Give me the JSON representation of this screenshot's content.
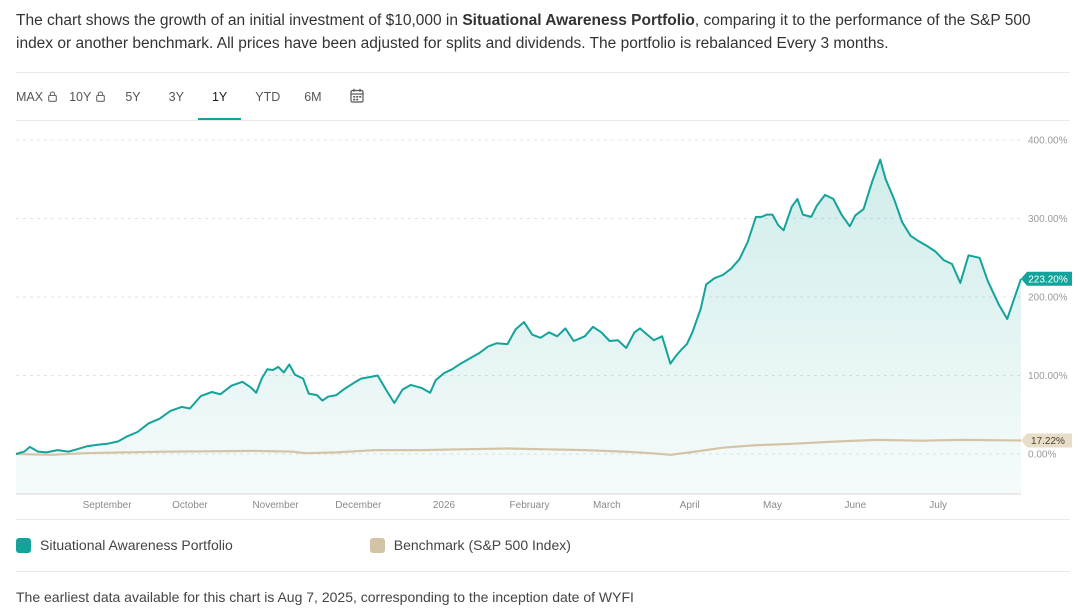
{
  "description": {
    "prefix": "The chart shows the growth of an initial investment of $10,000 in ",
    "portfolio_name": "Situational Awareness Portfolio",
    "suffix": ", comparing it to the performance of the S&P 500 index or another benchmark. All prices have been adjusted for splits and dividends. The portfolio is rebalanced Every 3 months."
  },
  "tabs": [
    {
      "label": "MAX",
      "locked": true,
      "active": false
    },
    {
      "label": "10Y",
      "locked": true,
      "active": false
    },
    {
      "label": "5Y",
      "locked": false,
      "active": false
    },
    {
      "label": "3Y",
      "locked": false,
      "active": false
    },
    {
      "label": "1Y",
      "locked": false,
      "active": true
    },
    {
      "label": "YTD",
      "locked": false,
      "active": false
    },
    {
      "label": "6M",
      "locked": false,
      "active": false
    }
  ],
  "icons": {
    "lock": "lock-icon",
    "calendar": "calendar-icon"
  },
  "colors": {
    "portfolio": "#14a39a",
    "benchmark": "#d3c4a7",
    "active_tab": "#14a39a"
  },
  "chart_data": {
    "type": "area",
    "title": "",
    "xlabel": "",
    "ylabel": "",
    "y_unit": "%",
    "ylim": [
      -50,
      400
    ],
    "yticks": [
      {
        "value": 400,
        "label": "400.00%"
      },
      {
        "value": 300,
        "label": "300.00%"
      },
      {
        "value": 200,
        "label": "200.00%"
      },
      {
        "value": 100,
        "label": "100.00%"
      },
      {
        "value": 0,
        "label": "0.00%"
      }
    ],
    "xlim": [
      "2025-08-07",
      "2026-08-06"
    ],
    "xticks": [
      {
        "date": "2025-09-09",
        "label": "September"
      },
      {
        "date": "2025-10-09",
        "label": "October"
      },
      {
        "date": "2025-11-09",
        "label": "November"
      },
      {
        "date": "2025-12-09",
        "label": "December"
      },
      {
        "date": "2026-01-09",
        "label": "2026"
      },
      {
        "date": "2026-02-09",
        "label": "February"
      },
      {
        "date": "2026-03-09",
        "label": "March"
      },
      {
        "date": "2026-04-08",
        "label": "April"
      },
      {
        "date": "2026-05-08",
        "label": "May"
      },
      {
        "date": "2026-06-07",
        "label": "June"
      },
      {
        "date": "2026-07-07",
        "label": "July"
      }
    ],
    "grid": true,
    "legend_position": "bottom",
    "series": [
      {
        "name": "Situational Awareness Portfolio",
        "end_label": "223.20%",
        "points": [
          [
            "2025-08-07",
            0
          ],
          [
            "2025-08-10",
            3
          ],
          [
            "2025-08-12",
            9
          ],
          [
            "2025-08-15",
            3
          ],
          [
            "2025-08-18",
            2
          ],
          [
            "2025-08-22",
            5
          ],
          [
            "2025-08-26",
            3
          ],
          [
            "2025-08-29",
            6
          ],
          [
            "2025-09-02",
            10
          ],
          [
            "2025-09-06",
            12
          ],
          [
            "2025-09-09",
            13
          ],
          [
            "2025-09-13",
            16
          ],
          [
            "2025-09-16",
            22
          ],
          [
            "2025-09-20",
            28
          ],
          [
            "2025-09-24",
            39
          ],
          [
            "2025-09-28",
            45
          ],
          [
            "2025-10-02",
            55
          ],
          [
            "2025-10-06",
            60
          ],
          [
            "2025-10-09",
            58
          ],
          [
            "2025-10-13",
            74
          ],
          [
            "2025-10-17",
            79
          ],
          [
            "2025-10-20",
            76
          ],
          [
            "2025-10-24",
            87
          ],
          [
            "2025-10-28",
            92
          ],
          [
            "2025-10-31",
            85
          ],
          [
            "2025-11-02",
            78
          ],
          [
            "2025-11-04",
            96
          ],
          [
            "2025-11-06",
            108
          ],
          [
            "2025-11-08",
            107
          ],
          [
            "2025-11-10",
            111
          ],
          [
            "2025-11-12",
            104
          ],
          [
            "2025-11-14",
            114
          ],
          [
            "2025-11-16",
            101
          ],
          [
            "2025-11-19",
            96
          ],
          [
            "2025-11-21",
            77
          ],
          [
            "2025-11-24",
            75
          ],
          [
            "2025-11-26",
            68
          ],
          [
            "2025-11-28",
            73
          ],
          [
            "2025-12-01",
            75
          ],
          [
            "2025-12-04",
            83
          ],
          [
            "2025-12-08",
            92
          ],
          [
            "2025-12-10",
            96
          ],
          [
            "2025-12-13",
            98
          ],
          [
            "2025-12-16",
            100
          ],
          [
            "2025-12-19",
            82
          ],
          [
            "2025-12-22",
            65
          ],
          [
            "2025-12-25",
            82
          ],
          [
            "2025-12-28",
            88
          ],
          [
            "2026-01-01",
            84
          ],
          [
            "2026-01-04",
            78
          ],
          [
            "2026-01-06",
            94
          ],
          [
            "2026-01-09",
            103
          ],
          [
            "2026-01-12",
            108
          ],
          [
            "2026-01-15",
            115
          ],
          [
            "2026-01-19",
            123
          ],
          [
            "2026-01-22",
            129
          ],
          [
            "2026-01-25",
            137
          ],
          [
            "2026-01-28",
            141
          ],
          [
            "2026-02-01",
            140
          ],
          [
            "2026-02-04",
            159
          ],
          [
            "2026-02-07",
            168
          ],
          [
            "2026-02-10",
            152
          ],
          [
            "2026-02-13",
            148
          ],
          [
            "2026-02-16",
            155
          ],
          [
            "2026-02-19",
            150
          ],
          [
            "2026-02-22",
            160
          ],
          [
            "2026-02-25",
            144
          ],
          [
            "2026-03-01",
            150
          ],
          [
            "2026-03-04",
            162
          ],
          [
            "2026-03-07",
            155
          ],
          [
            "2026-03-10",
            144
          ],
          [
            "2026-03-13",
            145
          ],
          [
            "2026-03-16",
            135
          ],
          [
            "2026-03-19",
            155
          ],
          [
            "2026-03-21",
            160
          ],
          [
            "2026-03-23",
            154
          ],
          [
            "2026-03-26",
            145
          ],
          [
            "2026-03-29",
            150
          ],
          [
            "2026-04-01",
            115
          ],
          [
            "2026-04-03",
            125
          ],
          [
            "2026-04-05",
            133
          ],
          [
            "2026-04-07",
            140
          ],
          [
            "2026-04-09",
            155
          ],
          [
            "2026-04-12",
            185
          ],
          [
            "2026-04-14",
            216
          ],
          [
            "2026-04-17",
            224
          ],
          [
            "2026-04-20",
            228
          ],
          [
            "2026-04-23",
            236
          ],
          [
            "2026-04-26",
            248
          ],
          [
            "2026-04-29",
            270
          ],
          [
            "2026-05-02",
            302
          ],
          [
            "2026-05-04",
            302
          ],
          [
            "2026-05-06",
            305
          ],
          [
            "2026-05-08",
            305
          ],
          [
            "2026-05-10",
            292
          ],
          [
            "2026-05-12",
            285
          ],
          [
            "2026-05-15",
            315
          ],
          [
            "2026-05-17",
            325
          ],
          [
            "2026-05-19",
            305
          ],
          [
            "2026-05-22",
            302
          ],
          [
            "2026-05-24",
            316
          ],
          [
            "2026-05-27",
            330
          ],
          [
            "2026-05-30",
            325
          ],
          [
            "2026-06-02",
            305
          ],
          [
            "2026-06-05",
            290
          ],
          [
            "2026-06-07",
            304
          ],
          [
            "2026-06-10",
            312
          ],
          [
            "2026-06-13",
            346
          ],
          [
            "2026-06-16",
            375
          ],
          [
            "2026-06-18",
            350
          ],
          [
            "2026-06-21",
            325
          ],
          [
            "2026-06-24",
            295
          ],
          [
            "2026-06-27",
            278
          ],
          [
            "2026-06-30",
            271
          ],
          [
            "2026-07-03",
            265
          ],
          [
            "2026-07-06",
            258
          ],
          [
            "2026-07-09",
            247
          ],
          [
            "2026-07-12",
            242
          ],
          [
            "2026-07-15",
            218
          ],
          [
            "2026-07-18",
            253
          ],
          [
            "2026-07-22",
            250
          ],
          [
            "2026-07-25",
            220
          ],
          [
            "2026-07-29",
            190
          ],
          [
            "2026-08-01",
            172
          ],
          [
            "2026-08-06",
            223.2
          ]
        ]
      },
      {
        "name": "Benchmark (S&P 500 Index)",
        "end_label": "17.22%",
        "points": [
          [
            "2025-08-07",
            0
          ],
          [
            "2025-08-20",
            -1
          ],
          [
            "2025-09-01",
            1
          ],
          [
            "2025-09-15",
            2
          ],
          [
            "2025-10-01",
            3
          ],
          [
            "2025-10-15",
            3.5
          ],
          [
            "2025-11-01",
            4
          ],
          [
            "2025-11-15",
            3
          ],
          [
            "2025-11-20",
            1
          ],
          [
            "2025-12-01",
            2
          ],
          [
            "2025-12-15",
            5
          ],
          [
            "2026-01-01",
            5
          ],
          [
            "2026-01-15",
            6
          ],
          [
            "2026-02-01",
            7
          ],
          [
            "2026-02-15",
            6
          ],
          [
            "2026-03-01",
            5
          ],
          [
            "2026-03-15",
            3
          ],
          [
            "2026-03-25",
            1
          ],
          [
            "2026-04-01",
            -1
          ],
          [
            "2026-04-10",
            3
          ],
          [
            "2026-04-20",
            8
          ],
          [
            "2026-05-01",
            11
          ],
          [
            "2026-05-15",
            13
          ],
          [
            "2026-06-01",
            16
          ],
          [
            "2026-06-15",
            18
          ],
          [
            "2026-07-01",
            17
          ],
          [
            "2026-07-15",
            18
          ],
          [
            "2026-08-06",
            17.22
          ]
        ]
      }
    ]
  },
  "legend": {
    "portfolio": "Situational Awareness Portfolio",
    "benchmark": "Benchmark (S&P 500 Index)"
  },
  "footnote": "The earliest data available for this chart is Aug 7, 2025, corresponding to the inception date of WYFI"
}
